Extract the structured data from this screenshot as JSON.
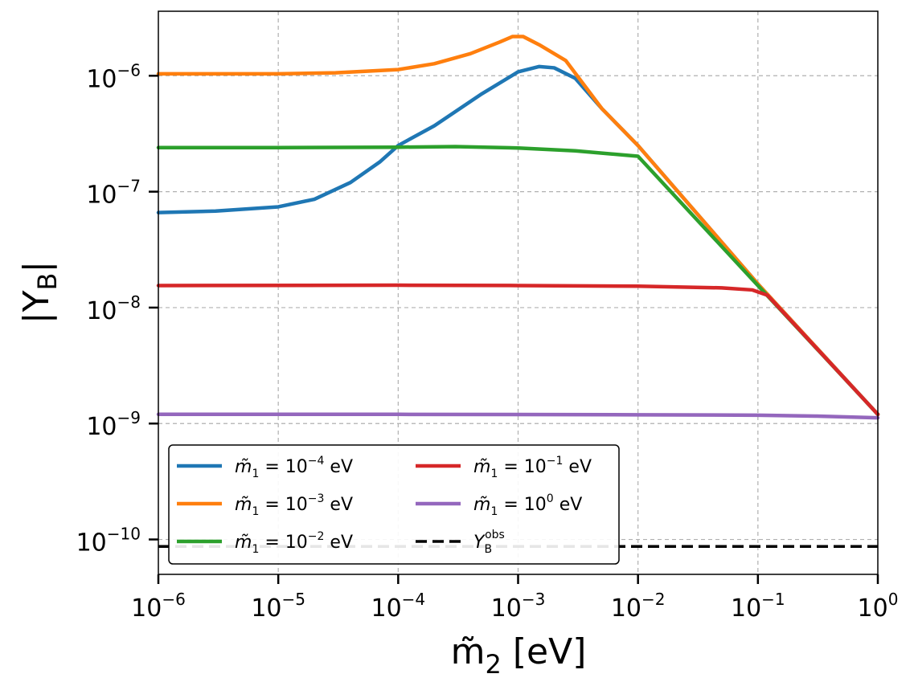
{
  "chart_data": {
    "type": "line",
    "scale": {
      "x": "log",
      "y": "log"
    },
    "xlim": [
      1e-06,
      1
    ],
    "ylim": [
      5e-11,
      3.6e-06
    ],
    "grid": true,
    "xlabel": {
      "base": "m̃",
      "sub": "2",
      "unit": "[eV]"
    },
    "ylabel": {
      "pre": "|Y",
      "sub": "B",
      "post": "|"
    },
    "x_ticks": [
      {
        "base": "10",
        "exp": "−6",
        "value": 1e-06
      },
      {
        "base": "10",
        "exp": "−5",
        "value": 1e-05
      },
      {
        "base": "10",
        "exp": "−4",
        "value": 0.0001
      },
      {
        "base": "10",
        "exp": "−3",
        "value": 0.001
      },
      {
        "base": "10",
        "exp": "−2",
        "value": 0.01
      },
      {
        "base": "10",
        "exp": "−1",
        "value": 0.1
      },
      {
        "base": "10",
        "exp": "0",
        "value": 1
      }
    ],
    "y_ticks": [
      {
        "base": "10",
        "exp": "−10",
        "value": 1e-10
      },
      {
        "base": "10",
        "exp": "−9",
        "value": 1e-09
      },
      {
        "base": "10",
        "exp": "−8",
        "value": 1e-08
      },
      {
        "base": "10",
        "exp": "−7",
        "value": 1e-07
      },
      {
        "base": "10",
        "exp": "−6",
        "value": 1e-06
      }
    ],
    "legend_position": "lower-left",
    "series": [
      {
        "name": "m̃1 = 10^-4 eV",
        "label": {
          "pre": "m̃",
          "sub": "1",
          "mid": " = 10",
          "exp": "−4",
          "unit": " eV"
        },
        "color": "#1f77b4",
        "dash": "solid",
        "x": [
          1e-06,
          3e-06,
          1e-05,
          2e-05,
          4e-05,
          7e-05,
          0.0001,
          0.0002,
          0.0005,
          0.001,
          0.0015,
          0.002,
          0.003,
          0.005,
          0.01,
          0.1,
          1
        ],
        "y": [
          6.6e-08,
          6.8e-08,
          7.4e-08,
          8.6e-08,
          1.2e-07,
          1.8e-07,
          2.5e-07,
          3.7e-07,
          7e-07,
          1.08e-06,
          1.2e-06,
          1.17e-06,
          9.5e-07,
          5.2e-07,
          2.5e-07,
          1.6e-08,
          1.2e-09
        ]
      },
      {
        "name": "m̃1 = 10^-3 eV",
        "label": {
          "pre": "m̃",
          "sub": "1",
          "mid": " = 10",
          "exp": "−3",
          "unit": " eV"
        },
        "color": "#ff7f0e",
        "dash": "solid",
        "x": [
          1e-06,
          1e-05,
          3e-05,
          0.0001,
          0.0002,
          0.0004,
          0.0007,
          0.0009,
          0.0011,
          0.0015,
          0.0025,
          0.005,
          0.01,
          0.1,
          1
        ],
        "y": [
          1.04e-06,
          1.04e-06,
          1.06e-06,
          1.13e-06,
          1.27e-06,
          1.55e-06,
          1.95e-06,
          2.18e-06,
          2.18e-06,
          1.85e-06,
          1.35e-06,
          5.2e-07,
          2.5e-07,
          1.6e-08,
          1.2e-09
        ]
      },
      {
        "name": "m̃1 = 10^-2 eV",
        "label": {
          "pre": "m̃",
          "sub": "1",
          "mid": " = 10",
          "exp": "−2",
          "unit": " eV"
        },
        "color": "#2ca02c",
        "dash": "solid",
        "x": [
          1e-06,
          1e-05,
          0.0001,
          0.0003,
          0.001,
          0.003,
          0.01,
          0.1,
          1
        ],
        "y": [
          2.4e-07,
          2.4e-07,
          2.42e-07,
          2.45e-07,
          2.38e-07,
          2.25e-07,
          2.02e-07,
          1.55e-08,
          1.2e-09
        ]
      },
      {
        "name": "m̃1 = 10^-1 eV",
        "label": {
          "pre": "m̃",
          "sub": "1",
          "mid": " = 10",
          "exp": "−1",
          "unit": " eV"
        },
        "color": "#d62728",
        "dash": "solid",
        "x": [
          1e-06,
          0.0001,
          0.001,
          0.01,
          0.05,
          0.09,
          0.12,
          1
        ],
        "y": [
          1.55e-08,
          1.56e-08,
          1.55e-08,
          1.53e-08,
          1.48e-08,
          1.42e-08,
          1.28e-08,
          1.2e-09
        ]
      },
      {
        "name": "m̃1 = 10^0 eV",
        "label": {
          "pre": "m̃",
          "sub": "1",
          "mid": " = 10",
          "exp": "0",
          "unit": " eV"
        },
        "color": "#9467bd",
        "dash": "solid",
        "x": [
          1e-06,
          0.0001,
          0.01,
          0.1,
          0.3,
          1
        ],
        "y": [
          1.2e-09,
          1.2e-09,
          1.19e-09,
          1.18e-09,
          1.16e-09,
          1.12e-09
        ]
      },
      {
        "name": "Y_B^obs",
        "label": {
          "pre": "Y",
          "sub": "B",
          "sup": "obs"
        },
        "color": "#000000",
        "dash": "dashed",
        "x": [
          1e-06,
          1
        ],
        "y": [
          8.7e-11,
          8.7e-11
        ]
      }
    ]
  }
}
